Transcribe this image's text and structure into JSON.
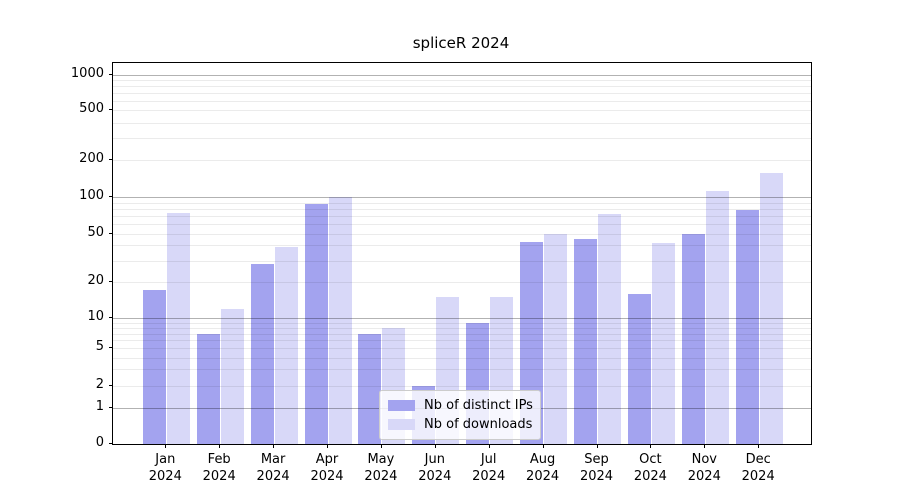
{
  "figure": {
    "title": "spliceR 2024"
  },
  "chart_data": {
    "type": "bar",
    "title": "spliceR 2024",
    "categories": [
      "Jan",
      "Feb",
      "Mar",
      "Apr",
      "May",
      "Jun",
      "Jul",
      "Aug",
      "Sep",
      "Oct",
      "Nov",
      "Dec"
    ],
    "category_year": "2024",
    "series": [
      {
        "name": "Nb of distinct IPs",
        "color": "#a3a3ef",
        "values": [
          17,
          7,
          28,
          87,
          7,
          2,
          9,
          43,
          45,
          16,
          50,
          78
        ]
      },
      {
        "name": "Nb of downloads",
        "color": "#d8d8f8",
        "values": [
          74,
          12,
          39,
          101,
          8,
          15,
          15,
          50,
          72,
          42,
          113,
          158
        ]
      }
    ],
    "yticks": [
      0,
      1,
      2,
      5,
      10,
      20,
      50,
      100,
      200,
      500,
      1000
    ],
    "ylim": [
      0,
      1200
    ],
    "yscale": "log-like above 1 with compressed region near 0",
    "grid": true,
    "grid_major_color": "#b3b3b3",
    "grid_minor_color": "#ebebeb",
    "legend_position": "lower center"
  }
}
